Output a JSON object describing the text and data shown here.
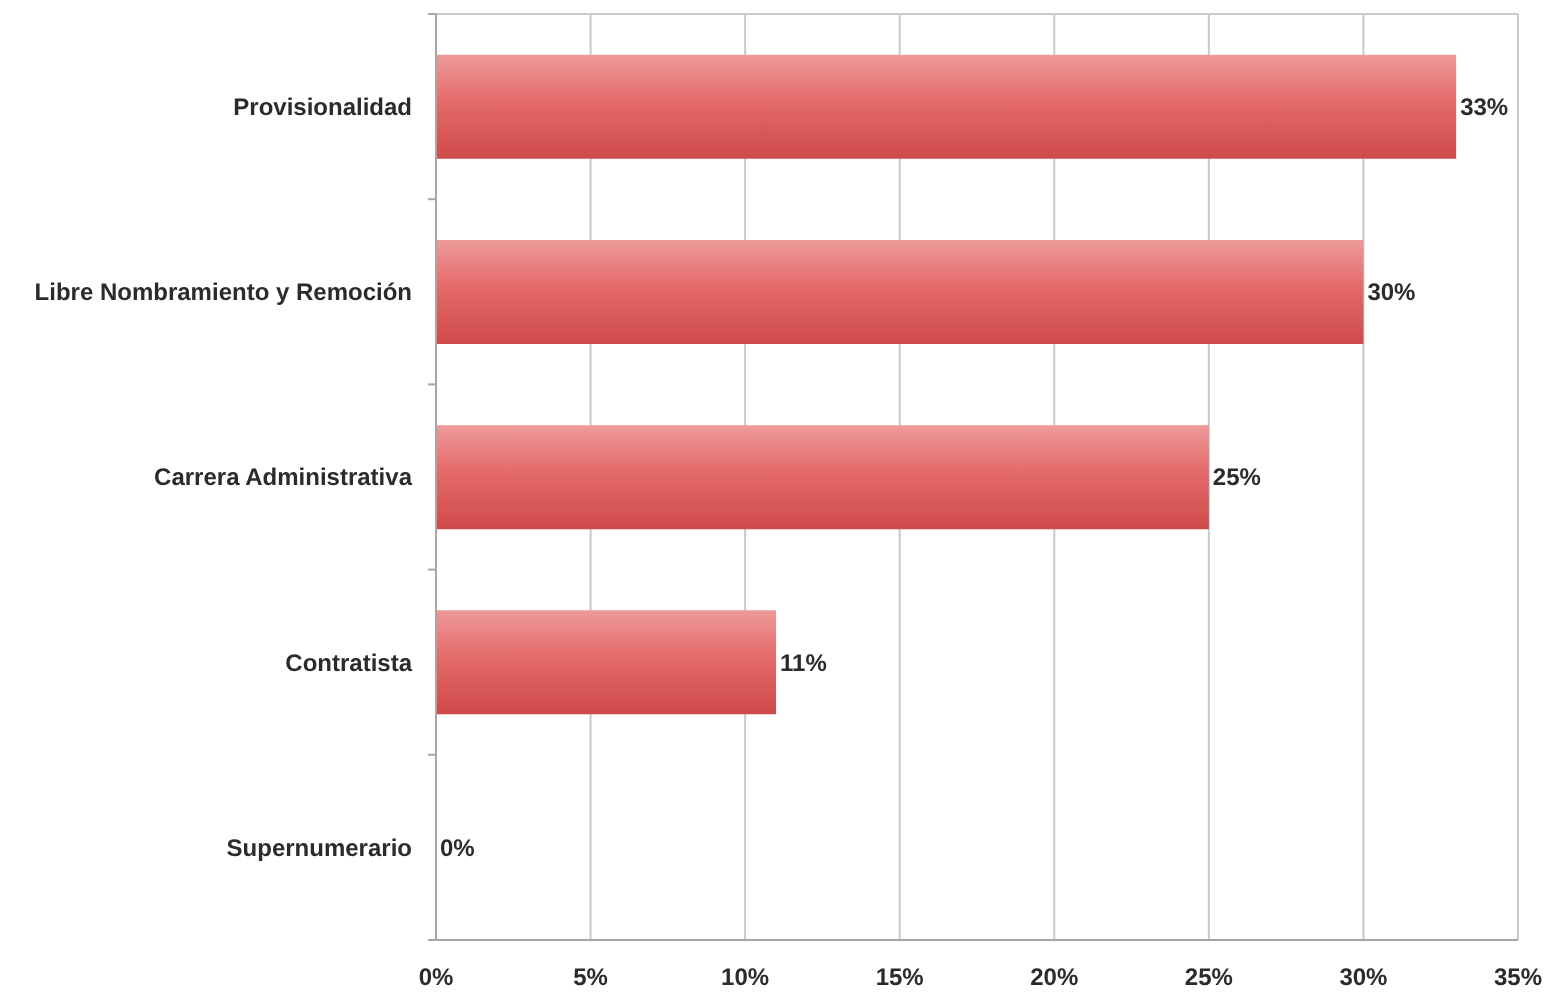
{
  "chart_data": {
    "type": "bar",
    "orientation": "horizontal",
    "categories": [
      "Provisionalidad",
      "Libre Nombramiento y Remoción",
      "Carrera Administrativa",
      "Contratista",
      "Supernumerario"
    ],
    "values": [
      33,
      30,
      25,
      11,
      0
    ],
    "value_labels": [
      "33%",
      "30%",
      "25%",
      "11%",
      "0%"
    ],
    "color": "#e05050",
    "xlim": [
      0,
      35
    ],
    "xticks": [
      {
        "value": 0,
        "label": "0%"
      },
      {
        "value": 5,
        "label": "5%"
      },
      {
        "value": 10,
        "label": "10%"
      },
      {
        "value": 15,
        "label": "15%"
      },
      {
        "value": 20,
        "label": "20%"
      },
      {
        "value": 25,
        "label": "25%"
      },
      {
        "value": 30,
        "label": "30%"
      },
      {
        "value": 35,
        "label": "35%"
      }
    ],
    "grid": "x"
  }
}
